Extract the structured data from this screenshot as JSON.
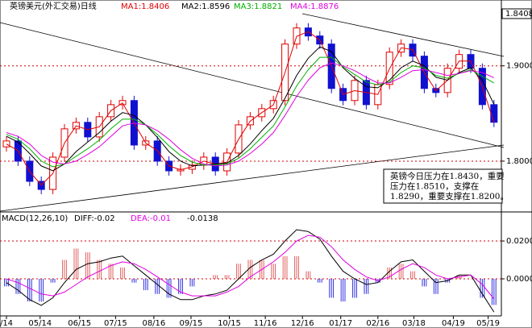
{
  "chart_data": [
    {
      "type": "candlestick",
      "title": "英镑美元(外汇交易)日线",
      "ylim": [
        1.7475,
        1.959
      ],
      "yticks": [
        {
          "value": 1.9,
          "label": "1.9000"
        },
        {
          "value": 1.8,
          "label": "1.8000"
        }
      ],
      "grid": true,
      "up_color": "#e00000",
      "down_color": "#1010d0",
      "open": [
        1.815,
        1.8212,
        1.8,
        1.7788,
        1.7703,
        1.8042,
        1.8339,
        1.8407,
        1.8254,
        1.8466,
        1.8593,
        1.8636,
        1.8169,
        1.8212,
        1.8,
        1.7898,
        1.7915,
        1.7958,
        1.8042,
        1.7898,
        1.8085,
        1.8381,
        1.8466,
        1.8551,
        1.8636,
        1.9229,
        1.9398,
        1.9314,
        1.9229,
        1.8763,
        1.8636,
        1.8847,
        1.8593,
        1.8805,
        1.9144,
        1.9229,
        1.9102,
        1.8763,
        1.872,
        1.8975,
        1.9119,
        1.8975,
        1.8593
      ],
      "high": [
        1.8262,
        1.8262,
        1.805,
        1.7838,
        1.8092,
        1.8389,
        1.8457,
        1.8457,
        1.8516,
        1.8643,
        1.8686,
        1.8686,
        1.8262,
        1.8262,
        1.805,
        1.7965,
        1.8008,
        1.8092,
        1.8092,
        1.8135,
        1.8431,
        1.8516,
        1.8601,
        1.8686,
        1.9279,
        1.9448,
        1.9448,
        1.9364,
        1.9279,
        1.8813,
        1.8897,
        1.8897,
        1.8855,
        1.9194,
        1.9279,
        1.9279,
        1.9152,
        1.8813,
        1.9025,
        1.9169,
        1.9169,
        1.9025,
        1.8643
      ],
      "low": [
        1.81,
        1.795,
        1.7738,
        1.7653,
        1.7653,
        1.7992,
        1.8289,
        1.8204,
        1.8204,
        1.8416,
        1.8543,
        1.8119,
        1.8119,
        1.795,
        1.7848,
        1.7848,
        1.7865,
        1.7908,
        1.7848,
        1.7848,
        1.8035,
        1.8331,
        1.8416,
        1.8501,
        1.8586,
        1.9179,
        1.9264,
        1.9179,
        1.8713,
        1.8586,
        1.8586,
        1.8543,
        1.8543,
        1.8755,
        1.9094,
        1.9052,
        1.8713,
        1.867,
        1.867,
        1.8925,
        1.8925,
        1.8543,
        1.8358
      ],
      "close": [
        1.8212,
        1.8,
        1.7788,
        1.7703,
        1.8042,
        1.8339,
        1.8407,
        1.8254,
        1.8466,
        1.8593,
        1.8636,
        1.8169,
        1.8212,
        1.8,
        1.7898,
        1.7915,
        1.7958,
        1.8042,
        1.7898,
        1.8085,
        1.8381,
        1.8466,
        1.8551,
        1.8636,
        1.9229,
        1.9398,
        1.9314,
        1.9229,
        1.8763,
        1.8636,
        1.8847,
        1.8593,
        1.8805,
        1.9144,
        1.9229,
        1.9102,
        1.8763,
        1.872,
        1.8975,
        1.9119,
        1.8975,
        1.8593,
        1.8408
      ],
      "series": [
        {
          "name": "MA1:1.8406",
          "color": "#e00000",
          "values": [
            1.818,
            1.811,
            1.789,
            1.775,
            1.787,
            1.819,
            1.837,
            1.833,
            1.836,
            1.853,
            1.861,
            1.84,
            1.819,
            1.811,
            1.795,
            1.791,
            1.794,
            1.8,
            1.797,
            1.799,
            1.823,
            1.842,
            1.851,
            1.859,
            1.893,
            1.931,
            1.936,
            1.927,
            1.9,
            1.87,
            1.874,
            1.872,
            1.87,
            1.897,
            1.919,
            1.917,
            1.893,
            1.874,
            1.885,
            1.905,
            1.905,
            1.878,
            1.8406
          ]
        },
        {
          "name": "MA2:1.8596",
          "color": "#000000",
          "values": [
            1.826,
            1.82,
            1.808,
            1.795,
            1.79,
            1.797,
            1.81,
            1.82,
            1.83,
            1.842,
            1.851,
            1.848,
            1.838,
            1.825,
            1.81,
            1.8,
            1.795,
            1.796,
            1.797,
            1.798,
            1.806,
            1.818,
            1.832,
            1.845,
            1.866,
            1.89,
            1.908,
            1.92,
            1.915,
            1.898,
            1.887,
            1.878,
            1.877,
            1.885,
            1.898,
            1.905,
            1.9,
            1.888,
            1.885,
            1.893,
            1.898,
            1.885,
            1.8596
          ]
        },
        {
          "name": "MA3:1.8821",
          "color": "#00b000",
          "values": [
            1.828,
            1.823,
            1.813,
            1.8,
            1.794,
            1.797,
            1.805,
            1.813,
            1.822,
            1.834,
            1.844,
            1.844,
            1.838,
            1.828,
            1.816,
            1.806,
            1.799,
            1.796,
            1.796,
            1.797,
            1.803,
            1.813,
            1.825,
            1.837,
            1.857,
            1.879,
            1.896,
            1.909,
            1.909,
            1.899,
            1.891,
            1.883,
            1.88,
            1.883,
            1.893,
            1.9,
            1.898,
            1.89,
            1.887,
            1.892,
            1.896,
            1.889,
            1.8821
          ]
        },
        {
          "name": "MA4:1.8876",
          "color": "#e000e0",
          "values": [
            1.83,
            1.826,
            1.818,
            1.806,
            1.799,
            1.797,
            1.8,
            1.807,
            1.815,
            1.826,
            1.837,
            1.84,
            1.838,
            1.832,
            1.823,
            1.812,
            1.803,
            1.797,
            1.795,
            1.796,
            1.8,
            1.808,
            1.818,
            1.83,
            1.848,
            1.868,
            1.885,
            1.898,
            1.903,
            1.9,
            1.895,
            1.888,
            1.882,
            1.882,
            1.888,
            1.895,
            1.896,
            1.893,
            1.89,
            1.892,
            1.895,
            1.893,
            1.8876
          ]
        }
      ],
      "annotation": [
        "英镑今日压力在1.8430，重要",
        "压力在1.8510，支撑在",
        "1.8290，重要支撑在1.8200。"
      ]
    },
    {
      "type": "macd",
      "title": "MACD(12,26,10)",
      "ylim": [
        -0.0196,
        0.0345
      ],
      "yticks": [
        {
          "value": 0.02,
          "label": "0.0200"
        },
        {
          "value": 0,
          "label": "0.0000"
        }
      ],
      "grid": true,
      "series": [
        {
          "name": "DIFF:-0.02",
          "color": "#000000",
          "values": [
            -0.002,
            -0.006,
            -0.011,
            -0.014,
            -0.01,
            -0.002,
            0.005,
            0.008,
            0.009,
            0.011,
            0.012,
            0.007,
            0.002,
            -0.003,
            -0.008,
            -0.011,
            -0.011,
            -0.009,
            -0.008,
            -0.006,
            0.0,
            0.006,
            0.01,
            0.013,
            0.02,
            0.026,
            0.025,
            0.021,
            0.012,
            0.004,
            0.0,
            -0.003,
            -0.002,
            0.004,
            0.009,
            0.01,
            0.004,
            -0.002,
            -0.001,
            0.002,
            0.002,
            -0.008,
            -0.0175
          ]
        },
        {
          "name": "DEA:-0.01",
          "color": "#e000e0",
          "values": [
            0.0,
            -0.002,
            -0.005,
            -0.008,
            -0.009,
            -0.007,
            -0.003,
            0.001,
            0.004,
            0.007,
            0.009,
            0.008,
            0.005,
            0.001,
            -0.003,
            -0.007,
            -0.009,
            -0.009,
            -0.009,
            -0.007,
            -0.004,
            0.001,
            0.005,
            0.009,
            0.014,
            0.02,
            0.023,
            0.022,
            0.017,
            0.01,
            0.005,
            0.001,
            -0.001,
            0.001,
            0.005,
            0.008,
            0.006,
            0.002,
            0.0,
            0.001,
            0.002,
            -0.003,
            -0.0106
          ]
        }
      ],
      "histogram": {
        "label": "-0.0138",
        "up_color": "#e06060",
        "down_color": "#3030e0",
        "values": [
          -0.004,
          -0.008,
          -0.012,
          -0.012,
          -0.002,
          0.01,
          0.016,
          0.014,
          0.01,
          0.008,
          0.006,
          -0.002,
          -0.006,
          -0.008,
          -0.01,
          -0.008,
          -0.004,
          0.0,
          0.002,
          0.002,
          0.008,
          0.01,
          0.01,
          0.008,
          0.012,
          0.012,
          0.004,
          -0.002,
          -0.01,
          -0.012,
          -0.01,
          -0.008,
          -0.002,
          0.006,
          0.008,
          0.004,
          -0.004,
          -0.008,
          -0.002,
          0.002,
          0.0,
          -0.01,
          -0.0138
        ]
      },
      "xticks": [
        {
          "value": 0,
          "label": "/14"
        },
        {
          "value": 2.9,
          "label": "05/14"
        },
        {
          "value": 6.3,
          "label": "06/15"
        },
        {
          "value": 9.4,
          "label": "07/15"
        },
        {
          "value": 12.7,
          "label": "08/16"
        },
        {
          "value": 15.9,
          "label": "09/15"
        },
        {
          "value": 19.2,
          "label": "10/15"
        },
        {
          "value": 22.3,
          "label": "11/16"
        },
        {
          "value": 25.5,
          "label": "12/16"
        },
        {
          "value": 28.8,
          "label": "01/17"
        },
        {
          "value": 32,
          "label": "02/16"
        },
        {
          "value": 35.1,
          "label": "03/18"
        },
        {
          "value": 38.5,
          "label": "04/19"
        },
        {
          "value": 41.5,
          "label": "05/19"
        }
      ]
    }
  ]
}
